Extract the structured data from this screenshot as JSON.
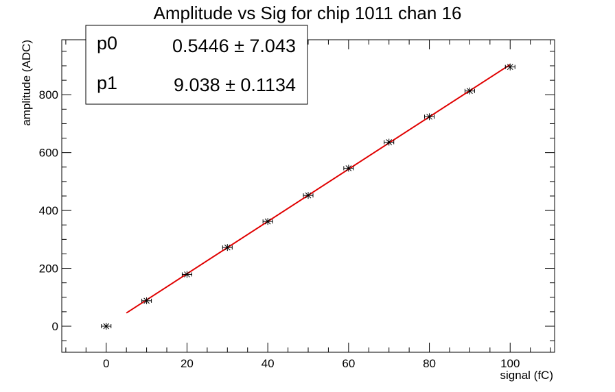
{
  "chart_data": {
    "type": "scatter",
    "title": "Amplitude vs Sig for chip 1011 chan 16",
    "xlabel": "signal (fC)",
    "ylabel": "amplitude (ADC)",
    "xlim": [
      -11,
      111
    ],
    "ylim": [
      -90,
      990
    ],
    "x_ticks": [
      0,
      20,
      40,
      60,
      80,
      100
    ],
    "y_ticks": [
      0,
      200,
      400,
      600,
      800
    ],
    "grid": false,
    "points": {
      "x": [
        0,
        10,
        20,
        30,
        40,
        50,
        60,
        70,
        80,
        90,
        100
      ],
      "y": [
        0,
        88,
        179,
        272,
        362,
        452,
        546,
        636,
        724,
        813,
        896
      ]
    },
    "fit": {
      "function": "linear",
      "range": [
        5,
        100
      ],
      "p0": 0.5446,
      "p1": 9.038,
      "color": "#e00000"
    },
    "stats_box": {
      "position": "top-left",
      "rows": [
        {
          "name": "p0",
          "value": "0.5446 ± 7.043"
        },
        {
          "name": "p1",
          "value": "9.038 ± 0.1134"
        }
      ]
    },
    "marker_color": "#000000"
  }
}
